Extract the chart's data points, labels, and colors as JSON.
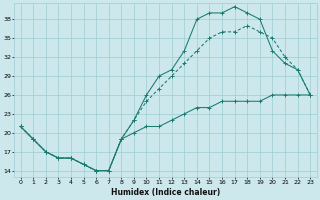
{
  "xlabel": "Humidex (Indice chaleur)",
  "bg_color": "#cde8ec",
  "grid_color": "#9ecdd4",
  "line_color": "#1a7a6e",
  "xlim": [
    -0.5,
    23.5
  ],
  "ylim": [
    13,
    40.5
  ],
  "xticks": [
    0,
    1,
    2,
    3,
    4,
    5,
    6,
    7,
    8,
    9,
    10,
    11,
    12,
    13,
    14,
    15,
    16,
    17,
    18,
    19,
    20,
    21,
    22,
    23
  ],
  "yticks": [
    14,
    17,
    20,
    23,
    26,
    29,
    32,
    35,
    38
  ],
  "line1_x": [
    0,
    1,
    2,
    3,
    4,
    5,
    6,
    7,
    8,
    9,
    10,
    11,
    12,
    13,
    14,
    15,
    16,
    17,
    18,
    19,
    20,
    21,
    22,
    23
  ],
  "line1_y": [
    21,
    19,
    17,
    16,
    16,
    15,
    14,
    14,
    19,
    22,
    26,
    29,
    30,
    33,
    38,
    39,
    39,
    40,
    39,
    38,
    33,
    31,
    30,
    26
  ],
  "line2_x": [
    0,
    1,
    2,
    3,
    4,
    5,
    6,
    7,
    8,
    9,
    10,
    11,
    12,
    13,
    14,
    15,
    16,
    17,
    18,
    19,
    20,
    21,
    22,
    23
  ],
  "line2_y": [
    21,
    19,
    17,
    16,
    16,
    15,
    14,
    14,
    19,
    22,
    25,
    27,
    29,
    31,
    33,
    35,
    36,
    36,
    37,
    36,
    35,
    32,
    30,
    26
  ],
  "line3_x": [
    0,
    1,
    2,
    3,
    4,
    5,
    6,
    7,
    8,
    9,
    10,
    11,
    12,
    13,
    14,
    15,
    16,
    17,
    18,
    19,
    20,
    21,
    22,
    23
  ],
  "line3_y": [
    21,
    19,
    17,
    16,
    16,
    15,
    14,
    14,
    19,
    20,
    21,
    21,
    22,
    23,
    24,
    24,
    25,
    25,
    25,
    25,
    26,
    26,
    26,
    26
  ]
}
